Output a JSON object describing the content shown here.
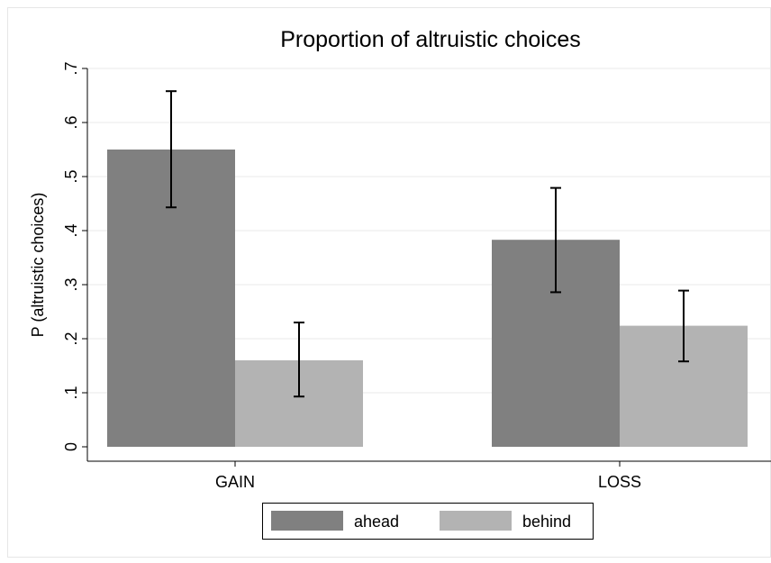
{
  "chart_data": {
    "type": "bar",
    "title": "Proportion of altruistic choices",
    "ylabel": "P (altruistic choices)",
    "xlabel": "",
    "categories": [
      "GAIN",
      "LOSS"
    ],
    "ylim": [
      0,
      0.7
    ],
    "yticks": [
      0,
      0.1,
      0.2,
      0.3,
      0.4,
      0.5,
      0.6,
      0.7
    ],
    "ytick_labels": [
      "0",
      ".1",
      ".2",
      ".3",
      ".4",
      ".5",
      ".6",
      ".7"
    ],
    "series": [
      {
        "name": "ahead",
        "color": "#808080",
        "values": [
          0.55,
          0.383
        ],
        "ci_low": [
          0.443,
          0.286
        ],
        "ci_high": [
          0.658,
          0.479
        ]
      },
      {
        "name": "behind",
        "color": "#b3b3b3",
        "values": [
          0.16,
          0.224
        ],
        "ci_low": [
          0.093,
          0.158
        ],
        "ci_high": [
          0.23,
          0.289
        ]
      }
    ],
    "grid": true,
    "error_bars": true,
    "legend_position": "bottom"
  }
}
